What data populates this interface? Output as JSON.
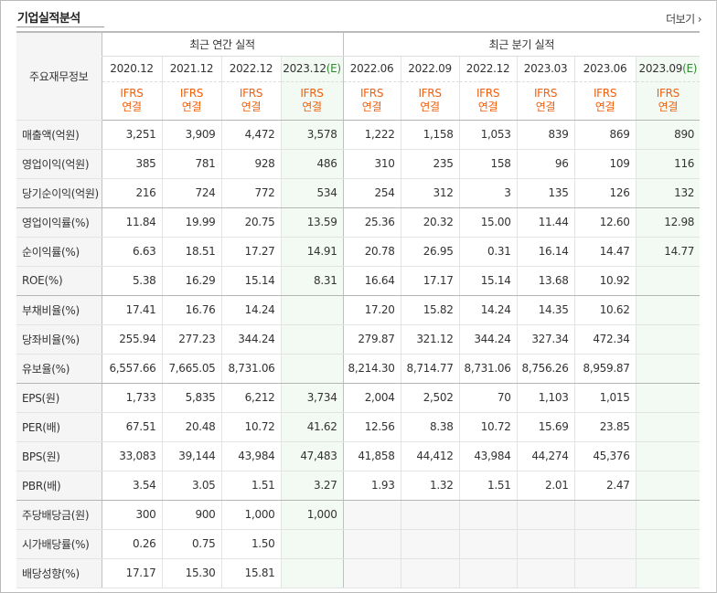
{
  "header": {
    "title": "기업실적분석",
    "more_label": "더보기",
    "more_icon": "chevron-right-icon"
  },
  "table": {
    "row_header_label": "주요재무정보",
    "annual_group_label": "최근 연간 실적",
    "quarter_group_label": "최근 분기 실적",
    "periods": [
      {
        "label": "2020.12",
        "est": false
      },
      {
        "label": "2021.12",
        "est": false
      },
      {
        "label": "2022.12",
        "est": false
      },
      {
        "label": "2023.12",
        "est": true,
        "est_mark": "(E)"
      },
      {
        "label": "2022.06",
        "est": false
      },
      {
        "label": "2022.09",
        "est": false
      },
      {
        "label": "2022.12",
        "est": false
      },
      {
        "label": "2023.03",
        "est": false
      },
      {
        "label": "2023.06",
        "est": false
      },
      {
        "label": "2023.09",
        "est": true,
        "est_mark": "(E)"
      }
    ],
    "ifrs_top": "IFRS",
    "ifrs_bottom": "연결",
    "rows": [
      {
        "label": "매출액(억원)",
        "values": [
          "3,251",
          "3,909",
          "4,472",
          "3,578",
          "1,222",
          "1,158",
          "1,053",
          "839",
          "869",
          "890"
        ]
      },
      {
        "label": "영업이익(억원)",
        "values": [
          "385",
          "781",
          "928",
          "486",
          "310",
          "235",
          "158",
          "96",
          "109",
          "116"
        ]
      },
      {
        "label": "당기순이익(억원)",
        "values": [
          "216",
          "724",
          "772",
          "534",
          "254",
          "312",
          "3",
          "135",
          "126",
          "132"
        ]
      },
      {
        "label": "영업이익률(%)",
        "values": [
          "11.84",
          "19.99",
          "20.75",
          "13.59",
          "25.36",
          "20.32",
          "15.00",
          "11.44",
          "12.60",
          "12.98"
        ]
      },
      {
        "label": "순이익률(%)",
        "values": [
          "6.63",
          "18.51",
          "17.27",
          "14.91",
          "20.78",
          "26.95",
          "0.31",
          "16.14",
          "14.47",
          "14.77"
        ]
      },
      {
        "label": "ROE(%)",
        "values": [
          "5.38",
          "16.29",
          "15.14",
          "8.31",
          "16.64",
          "17.17",
          "15.14",
          "13.68",
          "10.92",
          ""
        ]
      },
      {
        "label": "부채비율(%)",
        "values": [
          "17.41",
          "16.76",
          "14.24",
          "",
          "17.20",
          "15.82",
          "14.24",
          "14.35",
          "10.62",
          ""
        ]
      },
      {
        "label": "당좌비율(%)",
        "values": [
          "255.94",
          "277.23",
          "344.24",
          "",
          "279.87",
          "321.12",
          "344.24",
          "327.34",
          "472.34",
          ""
        ]
      },
      {
        "label": "유보율(%)",
        "values": [
          "6,557.66",
          "7,665.05",
          "8,731.06",
          "",
          "8,214.30",
          "8,714.77",
          "8,731.06",
          "8,756.26",
          "8,959.87",
          ""
        ]
      },
      {
        "label": "EPS(원)",
        "values": [
          "1,733",
          "5,835",
          "6,212",
          "3,734",
          "2,004",
          "2,502",
          "70",
          "1,103",
          "1,015",
          ""
        ]
      },
      {
        "label": "PER(배)",
        "values": [
          "67.51",
          "20.48",
          "10.72",
          "41.62",
          "12.56",
          "8.38",
          "10.72",
          "15.69",
          "23.85",
          ""
        ]
      },
      {
        "label": "BPS(원)",
        "values": [
          "33,083",
          "39,144",
          "43,984",
          "47,483",
          "41,858",
          "44,412",
          "43,984",
          "44,274",
          "45,376",
          ""
        ]
      },
      {
        "label": "PBR(배)",
        "values": [
          "3.54",
          "3.05",
          "1.51",
          "3.27",
          "1.93",
          "1.32",
          "1.51",
          "2.01",
          "2.47",
          ""
        ]
      },
      {
        "label": "주당배당금(원)",
        "values": [
          "300",
          "900",
          "1,000",
          "1,000",
          "",
          "",
          "",
          "",
          "",
          ""
        ]
      },
      {
        "label": "시가배당률(%)",
        "values": [
          "0.26",
          "0.75",
          "1.50",
          "",
          "",
          "",
          "",
          "",
          "",
          ""
        ]
      },
      {
        "label": "배당성향(%)",
        "values": [
          "17.17",
          "15.30",
          "15.81",
          "",
          "",
          "",
          "",
          "",
          "",
          ""
        ]
      }
    ]
  }
}
